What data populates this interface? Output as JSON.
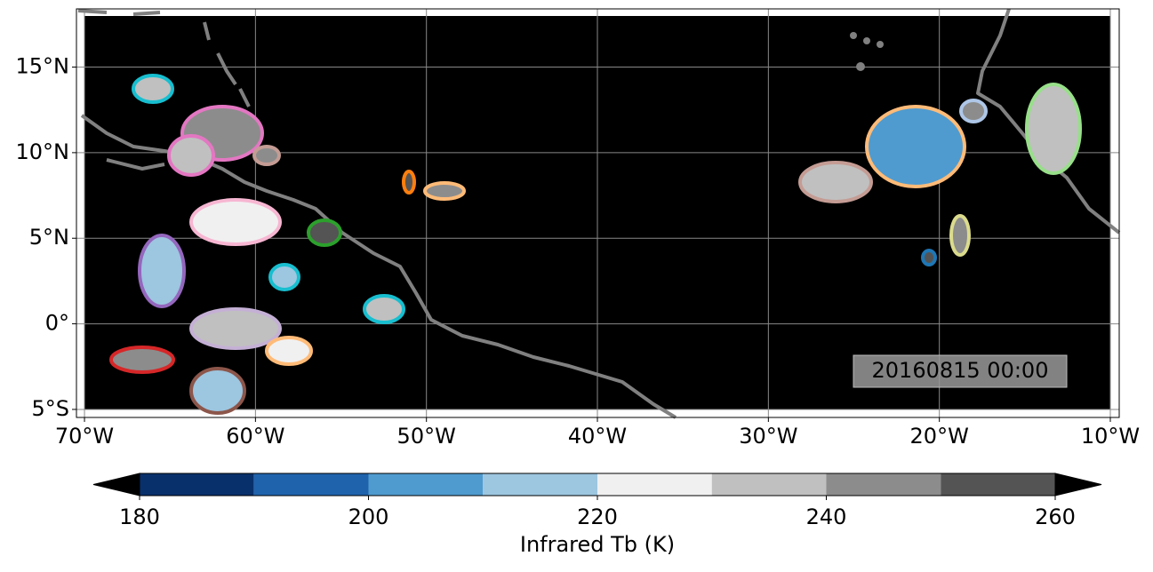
{
  "chart_data": {
    "type": "map",
    "xlim": [
      -70.47,
      -9.48
    ],
    "ylim": [
      -5.47,
      18.4
    ],
    "xticks": [
      {
        "value": -70,
        "label": "70°W"
      },
      {
        "value": -60,
        "label": "60°W"
      },
      {
        "value": -50,
        "label": "50°W"
      },
      {
        "value": -40,
        "label": "40°W"
      },
      {
        "value": -30,
        "label": "30°W"
      },
      {
        "value": -20,
        "label": "20°W"
      },
      {
        "value": -10,
        "label": "10°W"
      }
    ],
    "yticks": [
      {
        "value": -5,
        "label": "5°S"
      },
      {
        "value": 0,
        "label": "0°"
      },
      {
        "value": 5,
        "label": "5°N"
      },
      {
        "value": 10,
        "label": "10°N"
      },
      {
        "value": 15,
        "label": "15°N"
      }
    ],
    "grid": true,
    "annotation": "20160815 00:00",
    "colorbar": {
      "label": "Infrared Tb (K)",
      "levels": [
        180,
        190,
        200,
        210,
        220,
        230,
        240,
        250,
        260
      ],
      "colors": [
        "#08306b",
        "#1f63ad",
        "#4f9bcf",
        "#9dc6e0",
        "#f0f0f0",
        "#c0c0c0",
        "#8c8c8c",
        "#545454"
      ],
      "extend_colors": [
        "#000000",
        "#000000"
      ],
      "ticks": [
        180,
        200,
        220,
        240,
        260
      ]
    }
  }
}
